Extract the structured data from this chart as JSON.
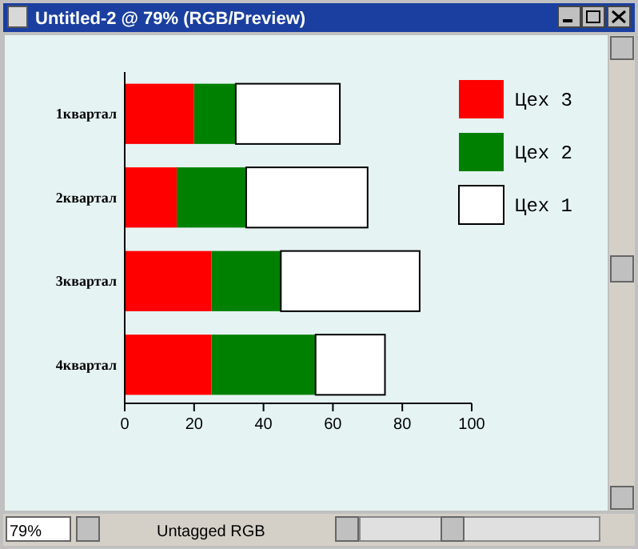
{
  "chart_data": {
    "type": "bar",
    "orientation": "horizontal",
    "stacked": true,
    "categories": [
      "1квартал",
      "2квартал",
      "3квартал",
      "4квартал"
    ],
    "series": [
      {
        "name": "Цех 3",
        "color": "#ff0000",
        "values": [
          20,
          15,
          25,
          25
        ]
      },
      {
        "name": "Цех 2",
        "color": "#008000",
        "values": [
          12,
          20,
          20,
          30
        ]
      },
      {
        "name": "Цех 1",
        "color": "#ffffff",
        "values": [
          30,
          35,
          40,
          20
        ]
      }
    ],
    "xlim": [
      0,
      100
    ],
    "xticks": [
      0,
      20,
      40,
      60,
      80,
      100
    ],
    "legend": "top right",
    "annotations": [
      "Untitled-2 @ 79% (RGB/Preview)",
      "79%",
      "Untagged RGB"
    ]
  }
}
